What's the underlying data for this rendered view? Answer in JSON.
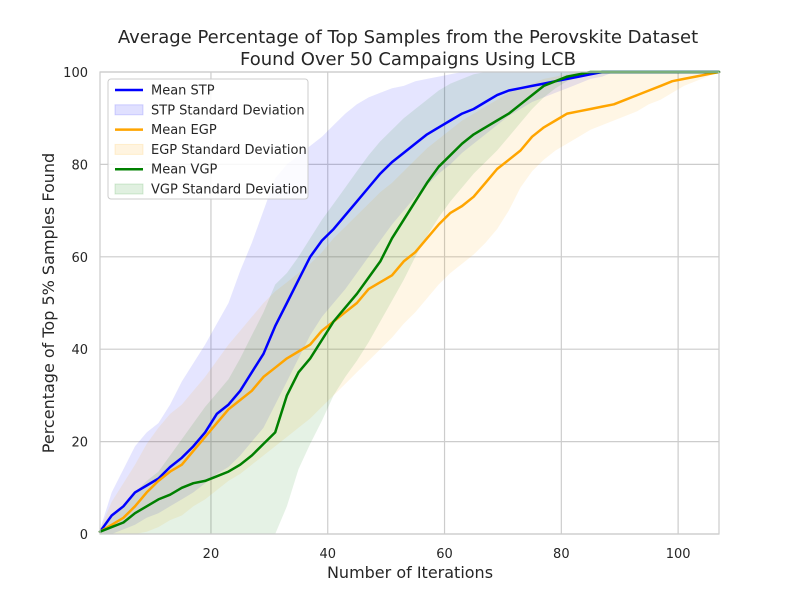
{
  "chart_data": {
    "type": "line",
    "title": "Average Percentage of Top Samples from the Perovskite Dataset",
    "subtitle": "Found Over 50 Campaigns Using LCB",
    "xlabel": "Number of Iterations",
    "ylabel": "Percentage of Top 5% Samples Found",
    "xlim": [
      1,
      107
    ],
    "ylim": [
      0,
      100
    ],
    "xticks": [
      20,
      40,
      60,
      80,
      100
    ],
    "yticks": [
      0,
      20,
      40,
      60,
      80,
      100
    ],
    "grid": true,
    "legend_position": "top-left",
    "series": [
      {
        "name": "Mean STP",
        "band_name": "STP Standard Deviation",
        "color": "#0000ff",
        "x": [
          1,
          3,
          5,
          7,
          9,
          11,
          13,
          15,
          17,
          19,
          21,
          23,
          25,
          27,
          29,
          31,
          33,
          35,
          37,
          39,
          41,
          43,
          45,
          47,
          49,
          51,
          53,
          55,
          57,
          59,
          61,
          63,
          65,
          67,
          69,
          71,
          73,
          75,
          77,
          79,
          81,
          83,
          85,
          87,
          89,
          107
        ],
        "y": [
          0.5,
          4,
          6,
          9,
          10.5,
          12,
          14.5,
          16.5,
          19,
          22,
          26,
          28,
          31,
          35,
          39,
          45,
          50,
          55,
          60,
          63.5,
          66,
          69,
          72,
          75,
          78,
          80.5,
          82.5,
          84.5,
          86.5,
          88,
          89.5,
          91,
          92,
          93.5,
          95,
          96,
          96.5,
          97,
          97.5,
          98,
          98.5,
          99,
          99.5,
          100,
          100,
          100
        ],
        "lower": [
          0,
          0,
          1,
          2,
          3.5,
          4.5,
          6,
          7.5,
          9,
          11,
          13,
          14.5,
          17,
          20,
          23,
          28,
          33,
          38,
          43,
          47,
          50,
          53,
          56.5,
          60,
          63.5,
          67,
          70,
          73,
          75.5,
          78,
          80,
          82.5,
          84.5,
          86.5,
          88.5,
          90.5,
          92,
          93.5,
          94.5,
          95.5,
          96.5,
          97.5,
          98.5,
          99,
          100,
          100
        ],
        "upper": [
          1,
          9,
          14,
          19,
          22,
          24,
          28,
          33,
          37,
          41,
          45.5,
          50,
          57,
          63,
          70,
          77,
          80,
          82,
          84,
          86,
          88.5,
          91,
          93,
          94.5,
          95.5,
          96.5,
          97,
          98,
          98.5,
          99,
          99.5,
          100,
          100,
          100,
          100,
          100,
          100,
          100,
          100,
          100,
          100,
          100,
          100,
          100,
          100,
          100
        ]
      },
      {
        "name": "Mean EGP",
        "band_name": "EGP Standard Deviation",
        "color": "#ffa500",
        "x": [
          1,
          3,
          5,
          7,
          9,
          11,
          13,
          15,
          17,
          19,
          21,
          23,
          25,
          27,
          29,
          31,
          33,
          35,
          37,
          39,
          41,
          43,
          45,
          47,
          49,
          51,
          53,
          55,
          57,
          59,
          61,
          63,
          65,
          67,
          69,
          71,
          73,
          75,
          77,
          79,
          81,
          83,
          85,
          87,
          89,
          91,
          93,
          95,
          97,
          99,
          101,
          103,
          105,
          107
        ],
        "y": [
          0.5,
          2,
          3.5,
          6,
          9,
          11.5,
          13.5,
          15,
          18,
          21,
          24,
          27,
          29,
          31,
          34,
          36,
          38,
          39.5,
          41,
          44,
          46,
          48,
          50,
          53,
          54.5,
          56,
          59,
          61,
          64,
          67,
          69.5,
          71,
          73,
          76,
          79,
          81,
          83,
          86,
          88,
          89.5,
          91,
          91.5,
          92,
          92.5,
          93,
          94,
          95,
          96,
          97,
          98,
          98.5,
          99,
          99.5,
          100
        ],
        "lower": [
          0,
          0,
          0,
          0,
          0.5,
          1.5,
          3,
          4,
          6,
          7.5,
          9.5,
          11.5,
          13,
          15,
          17,
          19,
          21,
          23,
          25,
          27.5,
          30,
          32.5,
          35,
          37.5,
          40,
          42.5,
          45.5,
          48,
          51,
          54,
          56.5,
          58.5,
          60.5,
          63,
          66,
          70,
          75,
          78.5,
          81,
          83,
          84.5,
          86,
          87.5,
          88.5,
          89.5,
          90.5,
          91.5,
          93,
          94,
          95.5,
          97,
          98,
          99,
          100
        ],
        "upper": [
          1,
          7,
          11,
          15,
          19.5,
          23,
          26,
          28,
          31,
          34,
          37.5,
          41,
          44,
          47,
          50,
          52.5,
          54.5,
          56.5,
          58.5,
          61,
          64,
          66.5,
          69,
          71.5,
          74,
          76,
          78.5,
          81,
          83.5,
          85.5,
          87.5,
          89.5,
          91,
          92.5,
          94,
          95.5,
          96.5,
          97.5,
          98.5,
          99,
          99.5,
          100,
          100,
          100,
          100,
          100,
          100,
          100,
          100,
          100,
          100,
          100,
          100,
          100
        ]
      },
      {
        "name": "Mean VGP",
        "band_name": "VGP Standard Deviation",
        "color": "#008000",
        "x": [
          1,
          3,
          5,
          7,
          9,
          11,
          13,
          15,
          17,
          19,
          21,
          23,
          25,
          27,
          29,
          31,
          33,
          35,
          37,
          39,
          41,
          43,
          45,
          47,
          49,
          51,
          53,
          55,
          57,
          59,
          61,
          63,
          65,
          67,
          69,
          71,
          73,
          75,
          77,
          79,
          81,
          83,
          85,
          107
        ],
        "y": [
          0.5,
          1.5,
          2.5,
          4.5,
          6,
          7.5,
          8.5,
          10,
          11,
          11.5,
          12.5,
          13.5,
          15,
          17,
          19.5,
          22,
          30,
          35,
          38,
          42,
          46,
          49,
          52,
          55.5,
          59,
          64,
          68,
          72,
          76,
          79.5,
          82,
          84.5,
          86.5,
          88,
          89.5,
          91,
          93,
          95,
          97,
          98,
          99,
          99.5,
          100,
          100
        ],
        "lower": [
          0,
          0,
          0,
          0,
          0,
          0,
          0,
          0,
          0,
          0,
          0,
          0,
          0,
          0,
          0,
          0,
          6,
          14,
          19.5,
          24.5,
          30,
          34,
          37.5,
          41.5,
          46,
          50.5,
          55,
          60,
          64.5,
          68.5,
          72,
          75,
          78,
          80.5,
          83,
          86,
          89,
          92,
          94.5,
          96.5,
          98,
          99,
          100,
          100
        ],
        "upper": [
          1,
          3.5,
          6,
          9,
          11.5,
          13.5,
          17,
          20.5,
          24,
          27.5,
          30.5,
          33.5,
          38,
          43,
          48,
          54,
          56.5,
          60,
          64,
          68,
          71.5,
          75,
          78.5,
          82,
          85,
          87.5,
          90,
          92,
          94,
          96,
          97.5,
          98.5,
          99.5,
          100,
          100,
          100,
          100,
          100,
          100,
          100,
          100,
          100,
          100,
          100
        ]
      }
    ]
  }
}
